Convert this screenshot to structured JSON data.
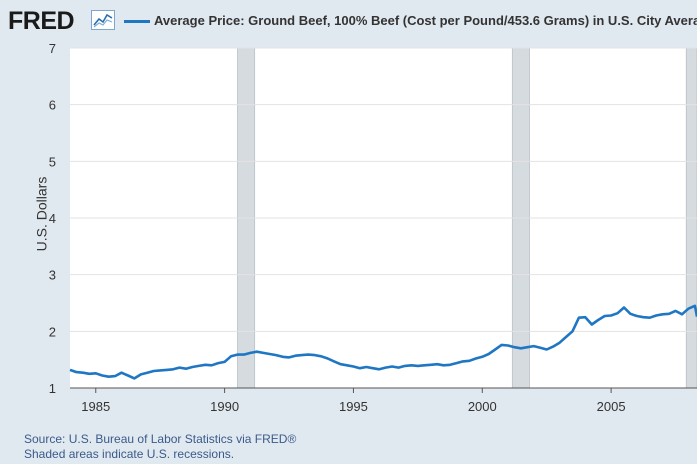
{
  "header": {
    "logo_text": "FRED",
    "logo_icon": "line-chart-icon",
    "legend_label": "Average Price: Ground Beef, 100% Beef (Cost per Pound/453.6 Grams) in U.S. City Average"
  },
  "footer": {
    "source": "Source: U.S. Bureau of Labor Statistics via FRED®",
    "note": "Shaded areas indicate U.S. recessions."
  },
  "colors": {
    "series": "#1f77c4",
    "background": "#e1e9f0",
    "plot_background": "#ffffff",
    "recession": "#d6dbe0"
  },
  "chart_data": {
    "type": "line",
    "title": "",
    "xlabel": "",
    "ylabel": "U.S. Dollars",
    "ylim": [
      1,
      7
    ],
    "xlim": [
      "1984-01",
      "2008-05"
    ],
    "yticks": [
      1,
      2,
      3,
      4,
      5,
      6,
      7
    ],
    "xticks": [
      "1985",
      "1990",
      "1995",
      "2000",
      "2005"
    ],
    "grid": true,
    "recessions": [
      [
        "1990-07",
        "1991-03"
      ],
      [
        "2001-03",
        "2001-11"
      ],
      [
        "2007-12",
        "2009-06"
      ]
    ],
    "series": [
      {
        "name": "Average Price: Ground Beef, 100% Beef (Cost per Pound/453.6 Grams) in U.S. City Average",
        "x": [
          "1984-01",
          "1984-04",
          "1984-07",
          "1984-10",
          "1985-01",
          "1985-04",
          "1985-07",
          "1985-10",
          "1986-01",
          "1986-04",
          "1986-07",
          "1986-10",
          "1987-01",
          "1987-04",
          "1987-07",
          "1987-10",
          "1988-01",
          "1988-04",
          "1988-07",
          "1988-10",
          "1989-01",
          "1989-04",
          "1989-07",
          "1989-10",
          "1990-01",
          "1990-04",
          "1990-07",
          "1990-10",
          "1991-01",
          "1991-04",
          "1991-07",
          "1991-10",
          "1992-01",
          "1992-04",
          "1992-07",
          "1992-10",
          "1993-01",
          "1993-04",
          "1993-07",
          "1993-10",
          "1994-01",
          "1994-04",
          "1994-07",
          "1994-10",
          "1995-01",
          "1995-04",
          "1995-07",
          "1995-10",
          "1996-01",
          "1996-04",
          "1996-07",
          "1996-10",
          "1997-01",
          "1997-04",
          "1997-07",
          "1997-10",
          "1998-01",
          "1998-04",
          "1998-07",
          "1998-10",
          "1999-01",
          "1999-04",
          "1999-07",
          "1999-10",
          "2000-01",
          "2000-04",
          "2000-07",
          "2000-10",
          "2001-01",
          "2001-04",
          "2001-07",
          "2001-10",
          "2002-01",
          "2002-04",
          "2002-07",
          "2002-10",
          "2003-01",
          "2003-04",
          "2003-07",
          "2003-10",
          "2004-01",
          "2004-04",
          "2004-07",
          "2004-10",
          "2005-01",
          "2005-04",
          "2005-07",
          "2005-10",
          "2006-01",
          "2006-04",
          "2006-07",
          "2006-10",
          "2007-01",
          "2007-04",
          "2007-07",
          "2007-10",
          "2008-01",
          "2008-04",
          "2008-05"
        ],
        "values": [
          1.32,
          1.28,
          1.27,
          1.25,
          1.26,
          1.22,
          1.2,
          1.21,
          1.27,
          1.22,
          1.17,
          1.24,
          1.27,
          1.3,
          1.31,
          1.32,
          1.33,
          1.36,
          1.34,
          1.37,
          1.39,
          1.41,
          1.4,
          1.44,
          1.46,
          1.56,
          1.59,
          1.59,
          1.62,
          1.64,
          1.62,
          1.6,
          1.58,
          1.55,
          1.54,
          1.57,
          1.58,
          1.59,
          1.58,
          1.56,
          1.52,
          1.47,
          1.42,
          1.4,
          1.38,
          1.35,
          1.37,
          1.35,
          1.33,
          1.36,
          1.38,
          1.36,
          1.39,
          1.4,
          1.39,
          1.4,
          1.41,
          1.42,
          1.4,
          1.41,
          1.44,
          1.47,
          1.48,
          1.52,
          1.55,
          1.6,
          1.68,
          1.76,
          1.75,
          1.72,
          1.7,
          1.72,
          1.74,
          1.71,
          1.68,
          1.73,
          1.8,
          1.9,
          2.0,
          2.24,
          2.25,
          2.12,
          2.2,
          2.27,
          2.28,
          2.32,
          2.42,
          2.31,
          2.27,
          2.25,
          2.24,
          2.28,
          2.3,
          2.31,
          2.36,
          2.3,
          2.4,
          2.45,
          2.26
        ]
      }
    ]
  }
}
